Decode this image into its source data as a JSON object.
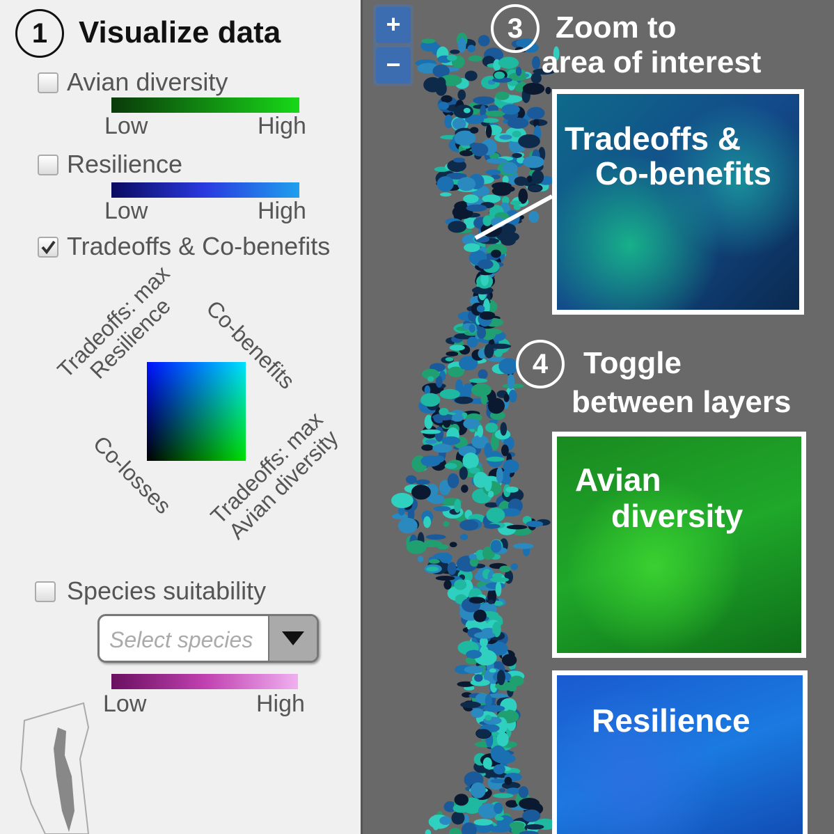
{
  "panel": {
    "step": "1",
    "title": "Visualize data",
    "layers": [
      {
        "label": "Avian diversity",
        "checked": false,
        "legend": {
          "low": "Low",
          "high": "High"
        }
      },
      {
        "label": "Resilience",
        "checked": false,
        "legend": {
          "low": "Low",
          "high": "High"
        }
      },
      {
        "label": "Tradeoffs & Co-benefits",
        "checked": true
      }
    ],
    "bivariate": {
      "top_left": [
        "Tradeoffs: max",
        "Resilience"
      ],
      "top_right": "Co-benefits",
      "bottom_left": "Co-losses",
      "bottom_right": [
        "Tradeoffs: max",
        "Avian diversity"
      ]
    },
    "species": {
      "label": "Species suitability",
      "checked": false,
      "placeholder": "Select species",
      "legend": {
        "low": "Low",
        "high": "High"
      }
    }
  },
  "map": {
    "zoom_in": "+",
    "zoom_out": "−",
    "callouts": [
      {
        "step": "3",
        "lines": [
          "Zoom to",
          "area of interest"
        ]
      },
      {
        "step": "4",
        "lines": [
          "Toggle",
          "between layers"
        ]
      }
    ],
    "insets": [
      {
        "lines": [
          "Tradeoffs &",
          "Co-benefits"
        ]
      },
      {
        "lines": [
          "Avian",
          "diversity"
        ]
      },
      {
        "lines": [
          "Resilience"
        ]
      }
    ]
  }
}
